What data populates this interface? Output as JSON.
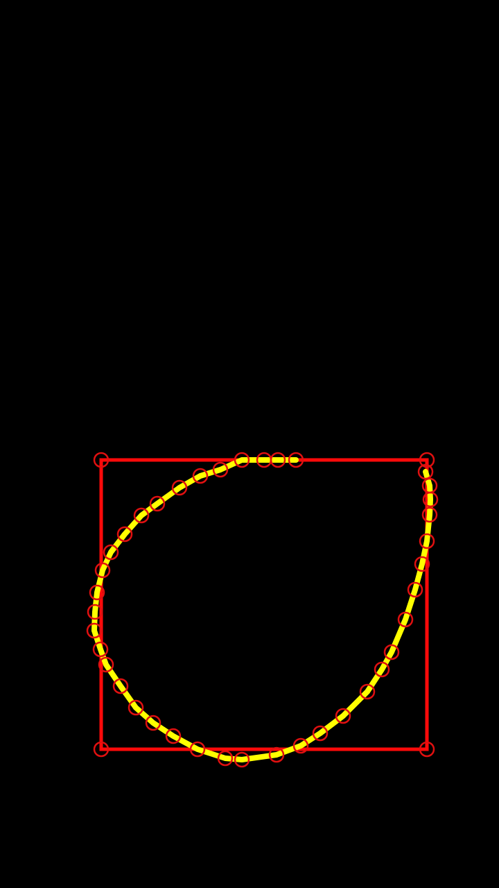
{
  "screen": {
    "background_color": "#000000"
  },
  "overlay": {
    "box_color": "#ff0a0a",
    "curve_color": "#ffff00",
    "marker_color": "#e01010",
    "box_corner_count": 4,
    "curve_point_count": 36
  }
}
